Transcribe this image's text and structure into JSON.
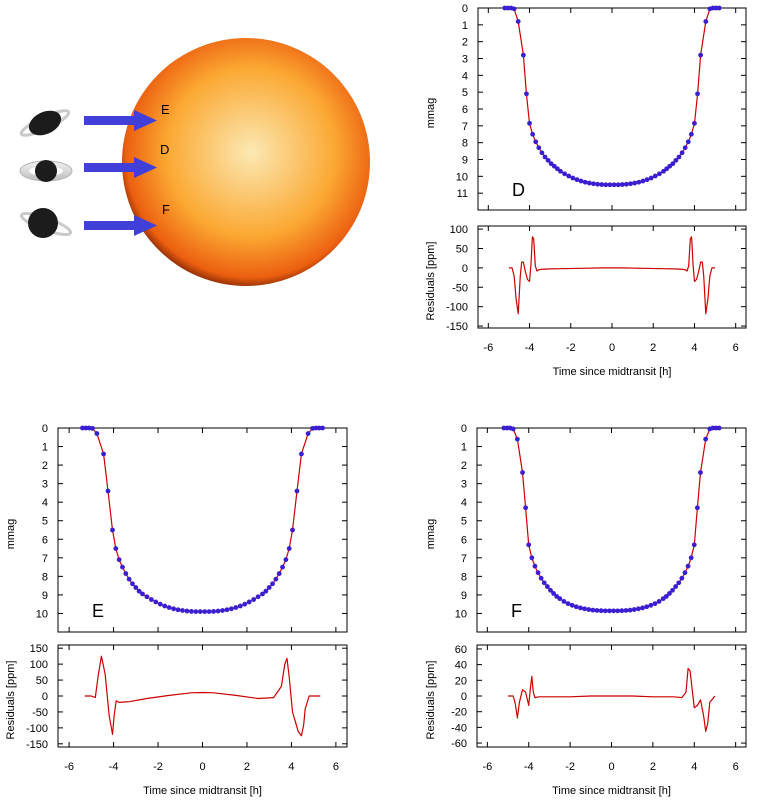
{
  "illustration": {
    "arrow_color": "#4040d8",
    "star_colors": {
      "center": "#fbe9b4",
      "mid": "#fba832",
      "edge": "#ec5f10",
      "limb": "#8b2a05"
    },
    "labels": {
      "E": "E",
      "D": "D",
      "F": "F"
    }
  },
  "chart_data": [
    {
      "panel": "D",
      "type": "line",
      "panel_label": "D",
      "xlabel": "Time since midtransit [h]",
      "x_ticks": [
        -6,
        -4,
        -2,
        0,
        2,
        4,
        6
      ],
      "xlim": [
        -6.5,
        6.5
      ],
      "top": {
        "ylabel": "mmag",
        "ylim": [
          0,
          12
        ],
        "y_inverted": true,
        "y_ticks": [
          0,
          1,
          2,
          3,
          4,
          5,
          6,
          7,
          8,
          9,
          10,
          11
        ],
        "model_color": "#cc0000",
        "point_color": "#3a1fd0",
        "depth": 10.5,
        "x": [
          -5.2,
          -5.05,
          -4.9,
          -4.75,
          -4.55,
          -4.3,
          -4.15,
          -4.0,
          -3.85,
          -3.7,
          -3.55,
          -3.4,
          -3.25,
          -3.1,
          -2.95,
          -2.8,
          -2.65,
          -2.5,
          -2.3,
          -2.1,
          -1.9,
          -1.7,
          -1.5,
          -1.3,
          -1.1,
          -0.9,
          -0.7,
          -0.5,
          -0.3,
          -0.1,
          0.1,
          0.3,
          0.5,
          0.7,
          0.9,
          1.1,
          1.3,
          1.5,
          1.7,
          1.9,
          2.1,
          2.3,
          2.5,
          2.65,
          2.8,
          2.95,
          3.1,
          3.25,
          3.4,
          3.55,
          3.7,
          3.85,
          4.0,
          4.15,
          4.3,
          4.55,
          4.75,
          4.9,
          5.05,
          5.2
        ],
        "y": [
          0,
          0,
          0,
          0.05,
          0.8,
          2.8,
          5.1,
          6.85,
          7.5,
          7.95,
          8.3,
          8.6,
          8.85,
          9.05,
          9.25,
          9.4,
          9.55,
          9.7,
          9.85,
          9.98,
          10.1,
          10.2,
          10.28,
          10.35,
          10.4,
          10.44,
          10.47,
          10.49,
          10.5,
          10.5,
          10.5,
          10.5,
          10.49,
          10.47,
          10.44,
          10.4,
          10.35,
          10.28,
          10.2,
          10.1,
          9.98,
          9.85,
          9.7,
          9.55,
          9.4,
          9.25,
          9.05,
          8.85,
          8.6,
          8.3,
          7.95,
          7.5,
          6.85,
          5.1,
          2.8,
          0.8,
          0.05,
          0,
          0,
          0
        ]
      },
      "bottom": {
        "ylabel": "Residuals [ppm]",
        "ylim": [
          -155,
          108
        ],
        "y_ticks": [
          -150,
          -100,
          -50,
          0,
          50,
          100
        ],
        "x": [
          -5.0,
          -4.85,
          -4.75,
          -4.65,
          -4.55,
          -4.45,
          -4.38,
          -4.3,
          -4.2,
          -4.1,
          -4.0,
          -3.93,
          -3.86,
          -3.8,
          -3.72,
          -3.64,
          -3.55,
          -3.45,
          -3.2,
          -2.5,
          -1.5,
          -0.5,
          0.0,
          0.5,
          1.5,
          2.5,
          3.2,
          3.45,
          3.55,
          3.64,
          3.72,
          3.8,
          3.86,
          3.93,
          4.0,
          4.1,
          4.2,
          4.3,
          4.38,
          4.45,
          4.55,
          4.65,
          4.75,
          4.85,
          5.0
        ],
        "y": [
          0,
          0,
          -20,
          -80,
          -118,
          -20,
          15,
          15,
          -10,
          -30,
          -35,
          10,
          80,
          75,
          5,
          -8,
          -5,
          -4,
          -3,
          -2,
          -1,
          0,
          0,
          0,
          -1,
          -2,
          -3,
          -4,
          -5,
          -8,
          5,
          75,
          80,
          10,
          -35,
          -30,
          -10,
          15,
          15,
          -20,
          -118,
          -80,
          -20,
          0,
          0
        ]
      }
    },
    {
      "panel": "E",
      "type": "line",
      "panel_label": "E",
      "xlabel": "Time since midtransit [h]",
      "x_ticks": [
        -6,
        -4,
        -2,
        0,
        2,
        4,
        6
      ],
      "xlim": [
        -6.5,
        6.5
      ],
      "top": {
        "ylabel": "mmag",
        "ylim": [
          0,
          11
        ],
        "y_inverted": true,
        "y_ticks": [
          0,
          1,
          2,
          3,
          4,
          5,
          6,
          7,
          8,
          9,
          10
        ],
        "model_color": "#cc0000",
        "point_color": "#3a1fd0",
        "depth": 9.9,
        "x": [
          -5.4,
          -5.25,
          -5.1,
          -4.95,
          -4.75,
          -4.45,
          -4.25,
          -4.05,
          -3.9,
          -3.75,
          -3.6,
          -3.45,
          -3.3,
          -3.15,
          -3.0,
          -2.85,
          -2.7,
          -2.5,
          -2.3,
          -2.1,
          -1.9,
          -1.7,
          -1.5,
          -1.3,
          -1.1,
          -0.9,
          -0.7,
          -0.5,
          -0.3,
          -0.1,
          0.1,
          0.3,
          0.5,
          0.7,
          0.9,
          1.1,
          1.3,
          1.5,
          1.7,
          1.9,
          2.1,
          2.3,
          2.5,
          2.7,
          2.85,
          3.0,
          3.15,
          3.3,
          3.45,
          3.6,
          3.75,
          3.9,
          4.05,
          4.25,
          4.45,
          4.75,
          4.95,
          5.1,
          5.25,
          5.4
        ],
        "y": [
          0,
          0,
          0,
          0.02,
          0.3,
          1.4,
          3.4,
          5.5,
          6.5,
          7.1,
          7.5,
          7.85,
          8.15,
          8.4,
          8.6,
          8.8,
          8.95,
          9.1,
          9.25,
          9.38,
          9.5,
          9.6,
          9.68,
          9.75,
          9.8,
          9.84,
          9.87,
          9.89,
          9.9,
          9.9,
          9.9,
          9.9,
          9.89,
          9.87,
          9.84,
          9.8,
          9.75,
          9.68,
          9.6,
          9.5,
          9.38,
          9.25,
          9.1,
          8.95,
          8.8,
          8.6,
          8.4,
          8.15,
          7.85,
          7.5,
          7.1,
          6.5,
          5.5,
          3.4,
          1.4,
          0.3,
          0.02,
          0,
          0,
          0
        ]
      },
      "bottom": {
        "ylabel": "Residuals [ppm]",
        "ylim": [
          -160,
          160
        ],
        "y_ticks": [
          -150,
          -100,
          -50,
          0,
          50,
          100,
          150
        ],
        "x": [
          -5.3,
          -5.0,
          -4.82,
          -4.7,
          -4.55,
          -4.38,
          -4.2,
          -4.05,
          -3.97,
          -3.88,
          -3.75,
          -3.3,
          -2.5,
          -1.5,
          -0.5,
          0.0,
          0.5,
          1.5,
          2.5,
          3.2,
          3.55,
          3.7,
          3.8,
          3.9,
          4.05,
          4.3,
          4.45,
          4.55,
          4.62,
          4.8,
          5.0,
          5.3
        ],
        "y": [
          0,
          0,
          -5,
          60,
          125,
          70,
          -60,
          -120,
          -60,
          -15,
          -20,
          -18,
          -8,
          2,
          10,
          11,
          10,
          2,
          -8,
          -5,
          30,
          100,
          118,
          60,
          -50,
          -110,
          -125,
          -90,
          -40,
          0,
          0,
          0
        ]
      }
    },
    {
      "panel": "F",
      "type": "line",
      "panel_label": "F",
      "xlabel": "Time since midtransit [h]",
      "x_ticks": [
        -6,
        -4,
        -2,
        0,
        2,
        4,
        6
      ],
      "xlim": [
        -6.5,
        6.5
      ],
      "top": {
        "ylabel": "mmag",
        "ylim": [
          0,
          11
        ],
        "y_inverted": true,
        "y_ticks": [
          0,
          1,
          2,
          3,
          4,
          5,
          6,
          7,
          8,
          9,
          10
        ],
        "model_color": "#cc0000",
        "point_color": "#3a1fd0",
        "depth": 9.85,
        "x": [
          -5.2,
          -5.05,
          -4.9,
          -4.75,
          -4.55,
          -4.3,
          -4.15,
          -4.0,
          -3.85,
          -3.7,
          -3.55,
          -3.4,
          -3.25,
          -3.1,
          -2.95,
          -2.8,
          -2.65,
          -2.5,
          -2.3,
          -2.1,
          -1.9,
          -1.7,
          -1.5,
          -1.3,
          -1.1,
          -0.9,
          -0.7,
          -0.5,
          -0.3,
          -0.1,
          0.1,
          0.3,
          0.5,
          0.7,
          0.9,
          1.1,
          1.3,
          1.5,
          1.7,
          1.9,
          2.1,
          2.3,
          2.5,
          2.65,
          2.8,
          2.95,
          3.1,
          3.25,
          3.4,
          3.55,
          3.7,
          3.85,
          4.0,
          4.15,
          4.3,
          4.55,
          4.75,
          4.9,
          5.05,
          5.2
        ],
        "y": [
          0,
          0,
          0,
          0.05,
          0.6,
          2.4,
          4.3,
          6.3,
          7.0,
          7.45,
          7.8,
          8.1,
          8.35,
          8.55,
          8.75,
          8.92,
          9.08,
          9.2,
          9.35,
          9.47,
          9.56,
          9.64,
          9.7,
          9.75,
          9.79,
          9.82,
          9.84,
          9.85,
          9.86,
          9.86,
          9.86,
          9.86,
          9.85,
          9.84,
          9.82,
          9.79,
          9.75,
          9.7,
          9.64,
          9.56,
          9.47,
          9.35,
          9.2,
          9.08,
          8.92,
          8.75,
          8.55,
          8.35,
          8.1,
          7.8,
          7.45,
          7.0,
          6.3,
          4.3,
          2.4,
          0.6,
          0.05,
          0,
          0,
          0
        ]
      },
      "bottom": {
        "ylabel": "Residuals [ppm]",
        "ylim": [
          -65,
          65
        ],
        "y_ticks": [
          -60,
          -40,
          -20,
          0,
          20,
          40,
          60
        ],
        "x": [
          -5.0,
          -4.75,
          -4.65,
          -4.55,
          -4.45,
          -4.3,
          -4.15,
          -4.0,
          -3.92,
          -3.85,
          -3.78,
          -3.7,
          -3.5,
          -3.0,
          -2.0,
          -1.0,
          0.0,
          1.0,
          2.0,
          3.0,
          3.4,
          3.6,
          3.7,
          3.8,
          3.9,
          4.0,
          4.15,
          4.3,
          4.45,
          4.55,
          4.65,
          4.75,
          5.0
        ],
        "y": [
          0,
          0,
          -10,
          -28,
          -8,
          8,
          5,
          -12,
          10,
          25,
          5,
          -2,
          -1,
          -1,
          -1,
          0,
          0,
          0,
          -1,
          -1,
          -2,
          5,
          35,
          32,
          8,
          -15,
          -12,
          -5,
          -25,
          -45,
          -35,
          -8,
          0
        ]
      }
    }
  ]
}
